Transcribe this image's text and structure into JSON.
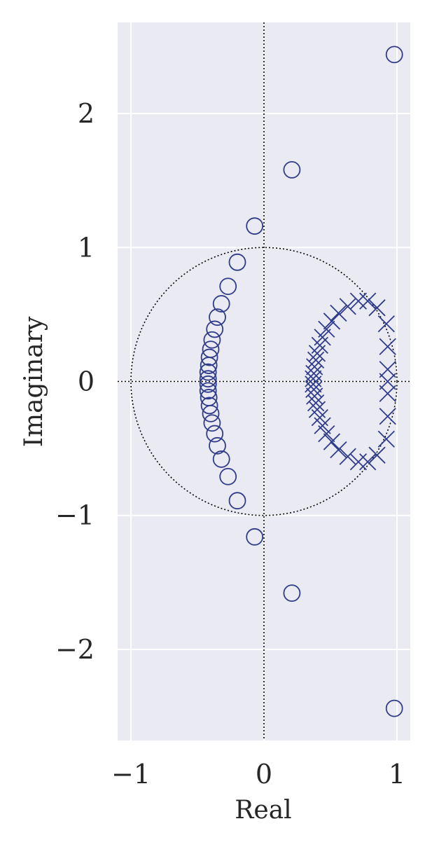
{
  "chart_data": {
    "type": "scatter",
    "title": "",
    "xlabel": "Real",
    "ylabel": "Imaginary",
    "xlim": [
      -1.1,
      1.1
    ],
    "ylim": [
      -2.68,
      2.68
    ],
    "xticks": [
      -1,
      0,
      1
    ],
    "xtick_labels": [
      "−1",
      "0",
      "1"
    ],
    "yticks": [
      -2,
      -1,
      0,
      1,
      2
    ],
    "ytick_labels": [
      "−2",
      "−1",
      "0",
      "1",
      "2"
    ],
    "grid": true,
    "unit_circle": true,
    "colors": {
      "background": "#eaeaf2",
      "grid": "#ffffff",
      "marker": "#2f3c8a",
      "reference": "#000000"
    },
    "series": [
      {
        "marker": "o",
        "points": [
          [
            0.98,
            2.44
          ],
          [
            0.98,
            -2.44
          ],
          [
            0.21,
            1.58
          ],
          [
            0.21,
            -1.58
          ],
          [
            -0.07,
            1.16
          ],
          [
            -0.07,
            -1.16
          ],
          [
            -0.2,
            0.89
          ],
          [
            -0.2,
            -0.89
          ],
          [
            -0.27,
            0.71
          ],
          [
            -0.27,
            -0.71
          ],
          [
            -0.32,
            0.58
          ],
          [
            -0.32,
            -0.58
          ],
          [
            -0.35,
            0.48
          ],
          [
            -0.35,
            -0.48
          ],
          [
            -0.37,
            0.39
          ],
          [
            -0.37,
            -0.39
          ],
          [
            -0.39,
            0.31
          ],
          [
            -0.39,
            -0.31
          ],
          [
            -0.4,
            0.24
          ],
          [
            -0.4,
            -0.24
          ],
          [
            -0.41,
            0.18
          ],
          [
            -0.41,
            -0.18
          ],
          [
            -0.415,
            0.12
          ],
          [
            -0.415,
            -0.12
          ],
          [
            -0.42,
            0.07
          ],
          [
            -0.42,
            -0.07
          ],
          [
            -0.42,
            0.02
          ],
          [
            -0.42,
            -0.02
          ]
        ]
      },
      {
        "marker": "x",
        "points": [
          [
            0.93,
            0.0
          ],
          [
            0.93,
            0.09
          ],
          [
            0.93,
            -0.09
          ],
          [
            0.93,
            0.26
          ],
          [
            0.93,
            -0.26
          ],
          [
            0.92,
            0.43
          ],
          [
            0.92,
            -0.43
          ],
          [
            0.85,
            0.55
          ],
          [
            0.85,
            -0.55
          ],
          [
            0.78,
            0.6
          ],
          [
            0.78,
            -0.6
          ],
          [
            0.71,
            0.6
          ],
          [
            0.71,
            -0.6
          ],
          [
            0.63,
            0.56
          ],
          [
            0.63,
            -0.56
          ],
          [
            0.56,
            0.51
          ],
          [
            0.56,
            -0.51
          ],
          [
            0.51,
            0.45
          ],
          [
            0.51,
            -0.45
          ],
          [
            0.47,
            0.39
          ],
          [
            0.47,
            -0.39
          ],
          [
            0.44,
            0.33
          ],
          [
            0.44,
            -0.33
          ],
          [
            0.42,
            0.27
          ],
          [
            0.42,
            -0.27
          ],
          [
            0.4,
            0.21
          ],
          [
            0.4,
            -0.21
          ],
          [
            0.39,
            0.16
          ],
          [
            0.39,
            -0.16
          ],
          [
            0.38,
            0.11
          ],
          [
            0.38,
            -0.11
          ],
          [
            0.375,
            0.06
          ],
          [
            0.375,
            -0.06
          ],
          [
            0.37,
            0.02
          ],
          [
            0.37,
            -0.02
          ]
        ]
      }
    ]
  }
}
